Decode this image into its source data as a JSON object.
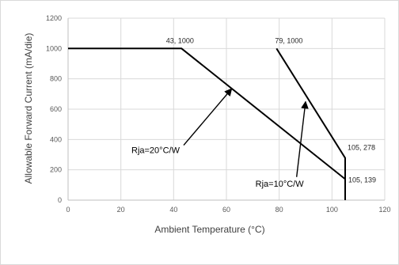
{
  "chart_data": {
    "type": "line",
    "title": "",
    "xlabel": "Ambient Temperature (°C)",
    "ylabel": "Allowable Forward Current (mA/die)",
    "xlim": [
      0,
      120
    ],
    "ylim": [
      0,
      1200
    ],
    "xticks": [
      0,
      20,
      40,
      60,
      80,
      100,
      120
    ],
    "yticks": [
      0,
      200,
      400,
      600,
      800,
      1000,
      1200
    ],
    "xtick_labels": [
      "0",
      "20",
      "40",
      "60",
      "80",
      "100",
      "120"
    ],
    "ytick_labels": [
      "0",
      "200",
      "400",
      "600",
      "800",
      "1000",
      "1200"
    ],
    "grid": true,
    "legend": "none",
    "series": [
      {
        "x": [
          0,
          43,
          105,
          105
        ],
        "y": [
          1000,
          1000,
          139,
          0
        ],
        "color": "#000000"
      },
      {
        "x": [
          79,
          105,
          105
        ],
        "y": [
          1000,
          278,
          139
        ],
        "color": "#000000"
      }
    ],
    "point_labels": [
      {
        "text": "43, 1000",
        "x": 43,
        "y": 1000
      },
      {
        "text": "79, 1000",
        "x": 79,
        "y": 1000
      },
      {
        "text": "105, 278",
        "x": 105,
        "y": 278
      },
      {
        "text": "105, 139",
        "x": 105,
        "y": 139
      }
    ],
    "annotations": [
      {
        "text": "Rja=20°C/W",
        "x": 24,
        "y": 310,
        "arrow_to_x": 62,
        "arrow_to_y": 735
      },
      {
        "text": "Rja=10°C/W",
        "x": 71,
        "y": 90,
        "arrow_to_x": 90,
        "arrow_to_y": 650
      }
    ]
  }
}
